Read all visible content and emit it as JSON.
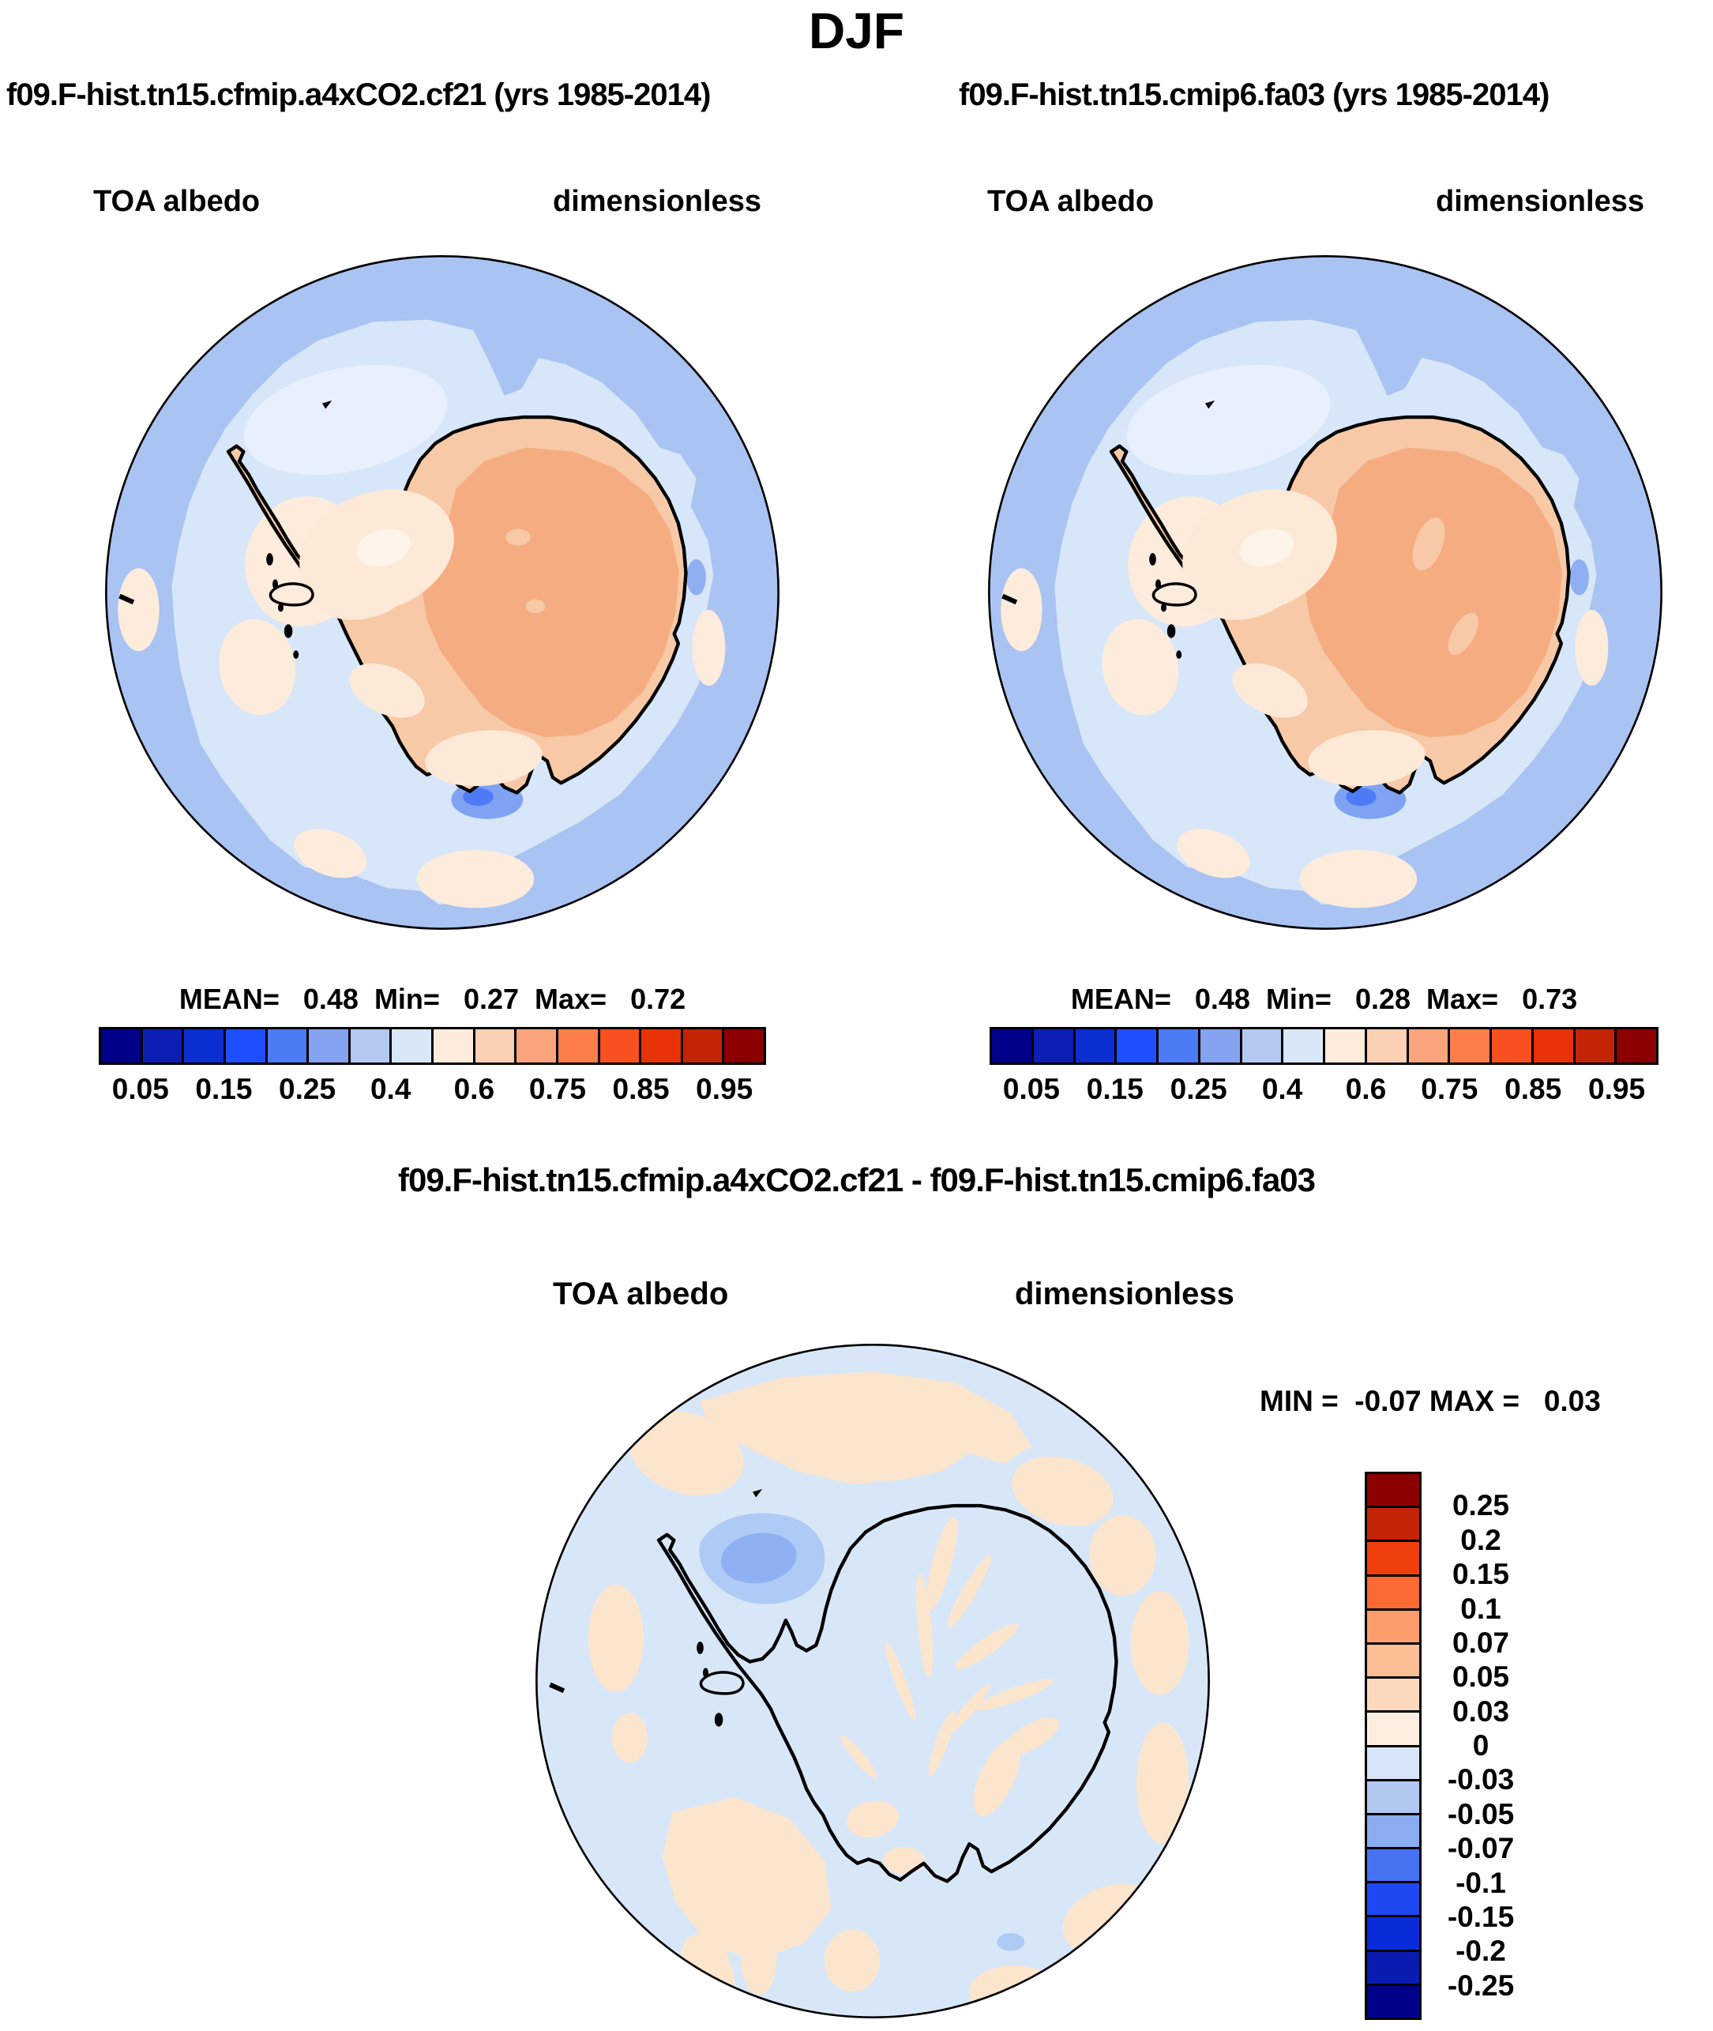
{
  "page": {
    "season_title": "DJF"
  },
  "panels": {
    "left": {
      "title": "f09.F-hist.tn15.cfmip.a4xCO2.cf21 (yrs 1985-2014)",
      "variable": "TOA albedo",
      "units": "dimensionless",
      "stats_text": "MEAN=   0.48  Min=   0.27  Max=   0.72"
    },
    "right": {
      "title": "f09.F-hist.tn15.cmip6.fa03 (yrs 1985-2014)",
      "variable": "TOA albedo",
      "units": "dimensionless",
      "stats_text": "MEAN=   0.48  Min=   0.28  Max=   0.73"
    },
    "diff": {
      "title": "f09.F-hist.tn15.cfmip.a4xCO2.cf21 - f09.F-hist.tn15.cmip6.fa03",
      "variable": "TOA albedo",
      "units": "dimensionless",
      "minmax_text": "MIN =  -0.07 MAX =   0.03"
    }
  },
  "albedo_colorbar": {
    "colors": [
      "#00008B",
      "#0D1EB4",
      "#0B2ED0",
      "#1E4FFF",
      "#4D7BF5",
      "#85A3F0",
      "#B4C9F2",
      "#D9E8F9",
      "#FDEBDC",
      "#FBD0B4",
      "#FCA57C",
      "#FB7E4A",
      "#FA4F1E",
      "#E83208",
      "#C22405",
      "#8C0000"
    ],
    "tick_labels": [
      "0.05",
      "0.15",
      "0.25",
      "0.4",
      "0.6",
      "0.75",
      "0.85",
      "0.95"
    ],
    "tick_positions": [
      0.0625,
      0.1875,
      0.3125,
      0.4375,
      0.5625,
      0.6875,
      0.8125,
      0.9375
    ]
  },
  "diff_colorbar": {
    "colors_top_to_bottom": [
      "#8C0000",
      "#C22405",
      "#EE3F0C",
      "#FB6A33",
      "#FB9E6B",
      "#FBBE95",
      "#FCD9BD",
      "#FDEFE0",
      "#D7E5F8",
      "#B1C8F1",
      "#8AACF0",
      "#4672F2",
      "#1E48F2",
      "#0A2BD8",
      "#0A1CB0",
      "#00008B"
    ],
    "labels_top_to_bottom": [
      "0.25",
      "0.2",
      "0.15",
      "0.1",
      "0.07",
      "0.05",
      "0.03",
      "0",
      "-0.03",
      "-0.05",
      "-0.07",
      "-0.1",
      "-0.15",
      "-0.2",
      "-0.25"
    ]
  },
  "palette": {
    "ocean": "#A9C3F2",
    "ocean_light": "#D7E6F9",
    "ocean_lighter": "#E7F0FC",
    "sea_cream": "#FDEBDC",
    "land": "#F8C9A7",
    "plateau": "#F6AC81",
    "land_cream": "#FDE9D8",
    "land_bright": "#FEF4EA",
    "ross_blue": "#7FA2F2",
    "ross_blue_dark": "#4D7BF5",
    "coast_blue": "#8FAFF2",
    "diff_base": "#D8E7F8",
    "diff_cream": "#FCE5CD",
    "diff_blue": "#AECBF5",
    "diff_blue_core": "#8FB0F2"
  },
  "chart_data": [
    {
      "type": "heatmap",
      "subtype": "south-polar-stereographic-map",
      "title": "f09.F-hist.tn15.cfmip.a4xCO2.cf21 (yrs 1985-2014)",
      "variable": "TOA albedo",
      "units": "dimensionless",
      "season": "DJF",
      "stats": {
        "mean": 0.48,
        "min": 0.27,
        "max": 0.72
      },
      "contour_levels": [
        0.05,
        0.1,
        0.15,
        0.2,
        0.25,
        0.3,
        0.4,
        0.5,
        0.6,
        0.7,
        0.75,
        0.8,
        0.85,
        0.9,
        0.95
      ],
      "palette": [
        "#00008B",
        "#0D1EB4",
        "#0B2ED0",
        "#1E4FFF",
        "#4D7BF5",
        "#85A3F0",
        "#B4C9F2",
        "#D9E8F9",
        "#FDEBDC",
        "#FBD0B4",
        "#FCA57C",
        "#FB7E4A",
        "#FA4F1E",
        "#E83208",
        "#C22405",
        "#8C0000"
      ],
      "legend_position": "below",
      "description": "Antarctic continent albedo ~0.6-0.7 over interior plateau, ~0.5-0.6 over coastal ice, ocean ~0.3-0.4 with lighter ring ~0.4-0.5 around coast"
    },
    {
      "type": "heatmap",
      "subtype": "south-polar-stereographic-map",
      "title": "f09.F-hist.tn15.cmip6.fa03 (yrs 1985-2014)",
      "variable": "TOA albedo",
      "units": "dimensionless",
      "season": "DJF",
      "stats": {
        "mean": 0.48,
        "min": 0.28,
        "max": 0.73
      },
      "contour_levels": [
        0.05,
        0.1,
        0.15,
        0.2,
        0.25,
        0.3,
        0.4,
        0.5,
        0.6,
        0.7,
        0.75,
        0.8,
        0.85,
        0.9,
        0.95
      ],
      "palette": [
        "#00008B",
        "#0D1EB4",
        "#0B2ED0",
        "#1E4FFF",
        "#4D7BF5",
        "#85A3F0",
        "#B4C9F2",
        "#D9E8F9",
        "#FDEBDC",
        "#FBD0B4",
        "#FCA57C",
        "#FB7E4A",
        "#FA4F1E",
        "#E83208",
        "#C22405",
        "#8C0000"
      ],
      "legend_position": "below",
      "description": "Nearly identical spatial pattern to left panel"
    },
    {
      "type": "heatmap",
      "subtype": "south-polar-stereographic-difference-map",
      "title": "f09.F-hist.tn15.cfmip.a4xCO2.cf21 - f09.F-hist.tn15.cmip6.fa03",
      "variable": "TOA albedo",
      "units": "dimensionless",
      "season": "DJF",
      "stats": {
        "min": -0.07,
        "max": 0.03
      },
      "contour_levels": [
        -0.25,
        -0.2,
        -0.15,
        -0.1,
        -0.07,
        -0.05,
        -0.03,
        0,
        0.03,
        0.05,
        0.07,
        0.1,
        0.15,
        0.2,
        0.25
      ],
      "palette_top_to_bottom": [
        "#8C0000",
        "#C22405",
        "#EE3F0C",
        "#FB6A33",
        "#FB9E6B",
        "#FBBE95",
        "#FCD9BD",
        "#FDEFE0",
        "#D7E5F8",
        "#B1C8F1",
        "#8AACF0",
        "#4672F2",
        "#1E48F2",
        "#0A2BD8",
        "#0A1CB0",
        "#00008B"
      ],
      "legend_position": "right",
      "description": "Mostly -0.03 to 0 (pale blue) with 0 to 0.03 cream patches; strongest negative (-0.05 to -0.07) blue blob near Antarctic Peninsula / Bellingshausen Sea"
    }
  ]
}
